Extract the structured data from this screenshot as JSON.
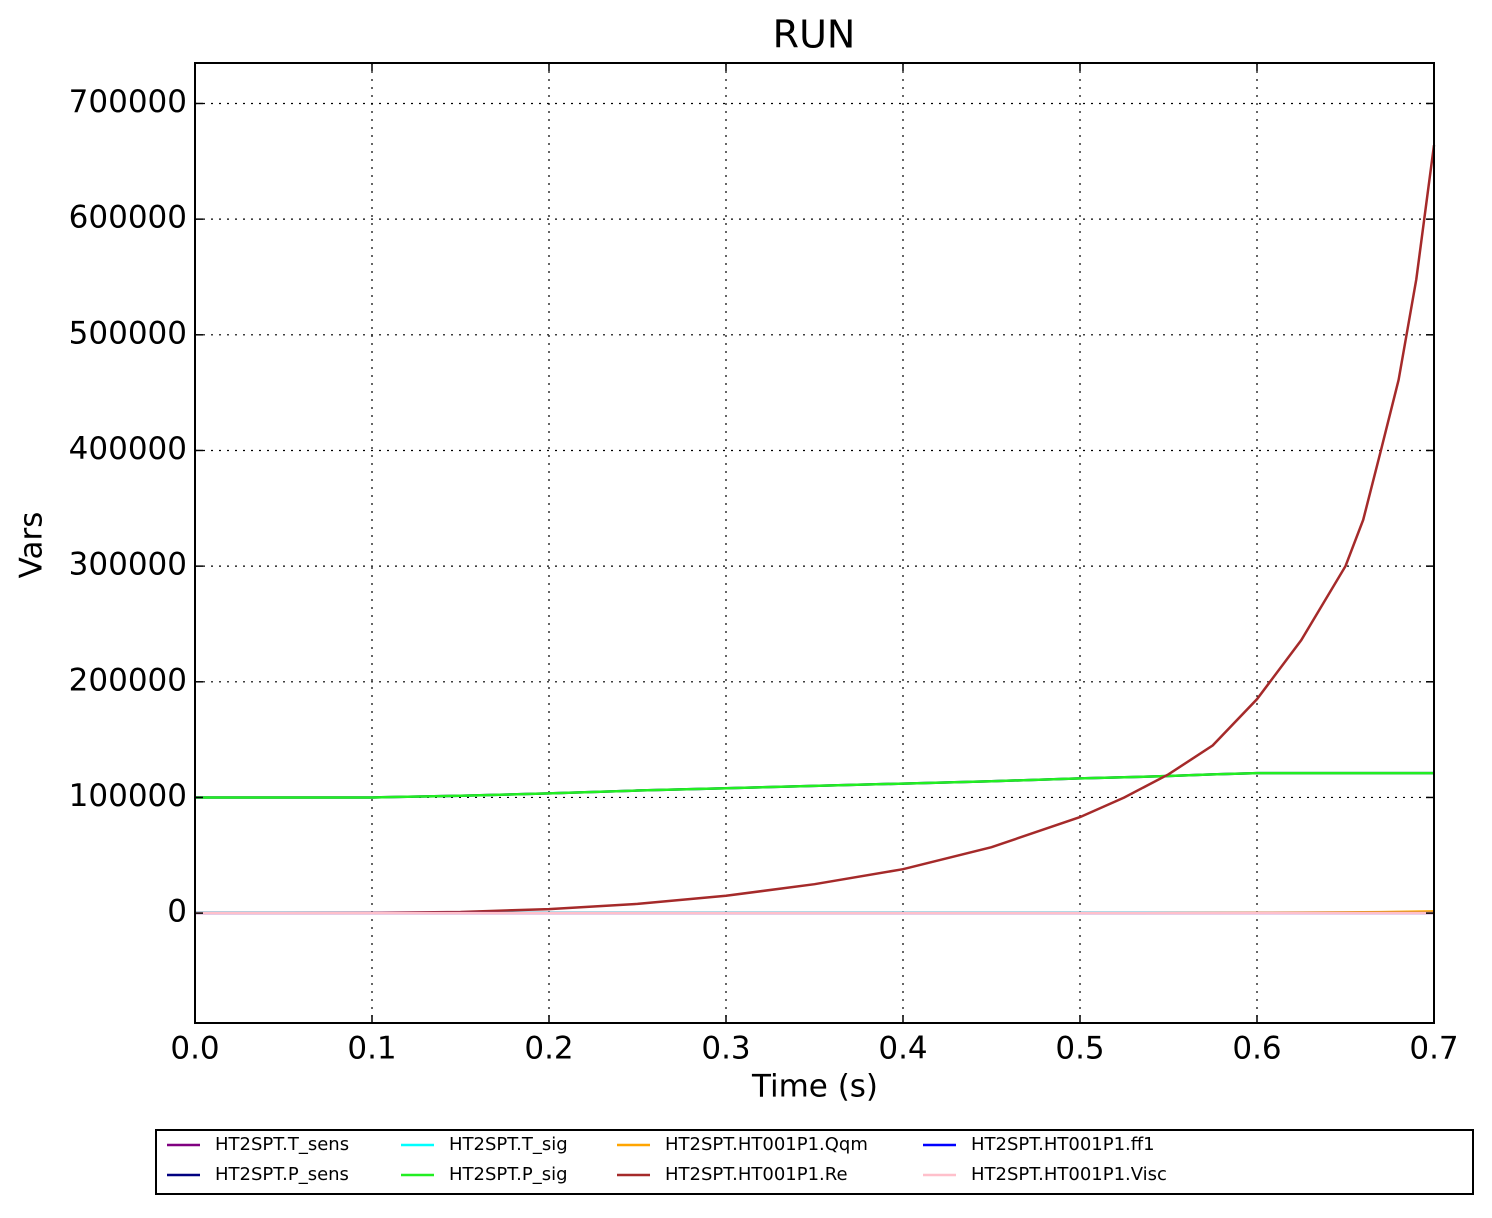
{
  "chart_data": {
    "type": "line",
    "title": "RUN",
    "x_label": "Time (s)",
    "y_label": "Vars",
    "x": [
      0,
      0.05,
      0.1,
      0.15,
      0.2,
      0.25,
      0.3,
      0.35,
      0.4,
      0.45,
      0.5,
      0.525,
      0.55,
      0.575,
      0.6,
      0.625,
      0.65,
      0.66,
      0.67,
      0.68,
      0.69,
      0.7
    ],
    "series": [
      {
        "name": "HT2SPT.T_sens",
        "color": "#800080",
        "values": [
          300,
          300,
          300,
          300,
          300,
          300,
          300,
          300,
          300,
          300,
          300,
          300,
          300,
          300,
          300,
          300,
          300,
          300,
          300,
          300,
          300,
          300
        ]
      },
      {
        "name": "HT2SPT.P_sens",
        "color": "#000080",
        "values": [
          100000,
          100000,
          100000,
          101500,
          103500,
          106000,
          108000,
          110000,
          112000,
          114000,
          116500,
          117500,
          118500,
          120000,
          121000,
          121000,
          121000,
          121000,
          121000,
          121000,
          121000,
          121000
        ]
      },
      {
        "name": "HT2SPT.T_sig",
        "color": "#00ffff",
        "values": [
          300,
          300,
          300,
          300,
          300,
          300,
          300,
          300,
          300,
          300,
          300,
          300,
          300,
          300,
          300,
          300,
          300,
          300,
          300,
          300,
          300,
          300
        ]
      },
      {
        "name": "HT2SPT.P_sig",
        "color": "#22ee22",
        "values": [
          100000,
          100000,
          100000,
          101500,
          103500,
          106000,
          108000,
          110000,
          112000,
          114000,
          116500,
          117500,
          118500,
          120000,
          121000,
          121000,
          121000,
          121000,
          121000,
          121000,
          121000,
          121000
        ]
      },
      {
        "name": "HT2SPT.HT001P1.Qqm",
        "color": "#ffa500",
        "values": [
          0,
          0,
          0,
          0,
          0,
          0,
          0,
          0,
          0,
          0,
          0,
          0,
          100,
          200,
          300,
          400,
          600,
          700,
          900,
          1100,
          1300,
          1500
        ]
      },
      {
        "name": "HT2SPT.HT001P1.Re",
        "color": "#a52a2a",
        "values": [
          0,
          0,
          200,
          1000,
          3500,
          8000,
          15000,
          25000,
          38000,
          57000,
          83000,
          100000,
          120000,
          145000,
          185000,
          236000,
          300000,
          340000,
          400000,
          461000,
          548000,
          664000
        ]
      },
      {
        "name": "HT2SPT.HT001P1.ff1",
        "color": "#0000ff",
        "values": [
          0,
          0,
          0,
          0,
          0,
          0,
          0,
          0,
          0,
          0,
          0,
          0,
          0,
          0,
          0,
          0,
          0,
          0,
          0,
          0,
          0,
          0
        ]
      },
      {
        "name": "HT2SPT.HT001P1.Visc",
        "color": "#ffc0cb",
        "values": [
          0,
          0,
          0,
          0,
          0,
          0,
          0,
          0,
          0,
          0,
          0,
          0,
          0,
          0,
          0,
          0,
          0,
          0,
          0,
          0,
          0,
          0
        ]
      }
    ],
    "xlim": [
      0,
      0.7
    ],
    "ylim": [
      -95000,
      735000
    ],
    "xticks": [
      {
        "value": 0,
        "label": "0.0"
      },
      0.1,
      0.2,
      0.3,
      0.4,
      0.5,
      0.6,
      0.7
    ],
    "yticks": [
      0,
      100000,
      200000,
      300000,
      400000,
      500000,
      600000,
      700000
    ],
    "grid": true,
    "legend": "bottom"
  }
}
